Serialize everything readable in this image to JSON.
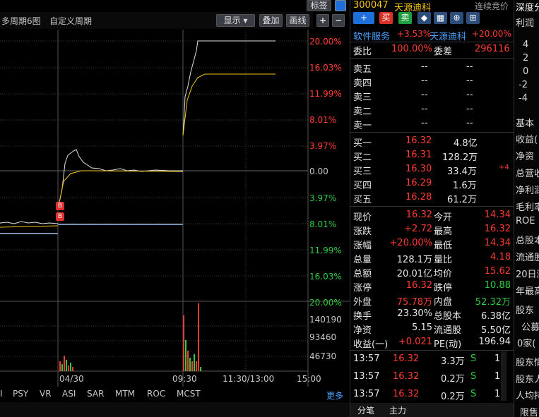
{
  "toolbar": {
    "tabs": [
      "多周期6图",
      "自定义周期"
    ],
    "display_label": "显示",
    "overlay_label": "叠加",
    "draw_label": "画线",
    "tag_label": "标签",
    "zoom_in": "+",
    "zoom_out": "−"
  },
  "chart": {
    "right_axis_top": [
      "20.00%",
      "16.03%",
      "11.99%",
      "8.01%",
      "3.97%",
      "0.00",
      "3.97%",
      "8.01%",
      "11.99%",
      "16.03%"
    ],
    "right_axis_top_colors": [
      "#ff3b30",
      "#ff3b30",
      "#ff3b30",
      "#ff3b30",
      "#ff3b30",
      "#c8c8c8",
      "#2ecc40",
      "#2ecc40",
      "#2ecc40",
      "#2ecc40"
    ],
    "volume_axis": [
      "20.00%",
      "140190",
      "93460",
      "46730"
    ],
    "volume_axis_colors": [
      "#2ecc40",
      "#c8c8c8",
      "#c8c8c8",
      "#c8c8c8"
    ],
    "x_labels": [
      "04/30",
      "09:30",
      "11:30/13:00",
      "15:00"
    ],
    "buy_markers": [
      "B",
      "B"
    ]
  },
  "indicators": {
    "items": [
      "I",
      "PSY",
      "VR",
      "ASI",
      "SAR",
      "MTM",
      "ROC",
      "MCST"
    ],
    "more_label": "更多"
  },
  "quote": {
    "code": "300047",
    "name": "天源迪科",
    "status": "连续竞价",
    "buy_btn": "买",
    "sell_btn": "卖",
    "add_btn": "+",
    "sector": "软件服务",
    "sector_change": "+3.53%",
    "stock_short": "天源迪科",
    "stock_change": "+20.00%",
    "ratio_label": "委比",
    "ratio_value": "100.00%",
    "diff_label": "委差",
    "diff_value": "296116",
    "asks": [
      {
        "label": "卖五",
        "price": "--",
        "vol": "--"
      },
      {
        "label": "卖四",
        "price": "--",
        "vol": "--"
      },
      {
        "label": "卖三",
        "price": "--",
        "vol": "--"
      },
      {
        "label": "卖二",
        "price": "--",
        "vol": "--"
      },
      {
        "label": "卖一",
        "price": "--",
        "vol": "--"
      }
    ],
    "bids": [
      {
        "label": "买一",
        "price": "16.32",
        "vol": "4.8亿",
        "extra": ""
      },
      {
        "label": "买二",
        "price": "16.31",
        "vol": "128.2万",
        "extra": ""
      },
      {
        "label": "买三",
        "price": "16.30",
        "vol": "33.4万",
        "extra": "+4"
      },
      {
        "label": "买四",
        "price": "16.29",
        "vol": "1.6万",
        "extra": ""
      },
      {
        "label": "买五",
        "price": "16.28",
        "vol": "61.2万",
        "extra": ""
      }
    ],
    "stats": [
      {
        "l1": "现价",
        "v1": "16.32",
        "c1": "#ff3b30",
        "l2": "今开",
        "v2": "14.34",
        "c2": "#ff3b30"
      },
      {
        "l1": "涨跌",
        "v1": "+2.72",
        "c1": "#ff3b30",
        "l2": "最高",
        "v2": "16.32",
        "c2": "#ff3b30"
      },
      {
        "l1": "涨幅",
        "v1": "+20.00%",
        "c1": "#ff3b30",
        "l2": "最低",
        "v2": "14.34",
        "c2": "#ff3b30"
      },
      {
        "l1": "总量",
        "v1": "128.1万",
        "c1": "#e6e6e6",
        "l2": "量比",
        "v2": "4.18",
        "c2": "#ff3b30"
      },
      {
        "l1": "总额",
        "v1": "20.01亿",
        "c1": "#e6e6e6",
        "l2": "均价",
        "v2": "15.62",
        "c2": "#ff3b30"
      },
      {
        "l1": "涨停",
        "v1": "16.32",
        "c1": "#ff3b30",
        "l2": "跌停",
        "v2": "10.88",
        "c2": "#2ecc40"
      },
      {
        "l1": "外盘",
        "v1": "75.78万",
        "c1": "#ff3b30",
        "l2": "内盘",
        "v2": "52.32万",
        "c2": "#2ecc40"
      },
      {
        "l1": "换手",
        "v1": "23.30%",
        "c1": "#e6e6e6",
        "l2": "总股本",
        "v2": "6.38亿",
        "c2": "#e6e6e6"
      },
      {
        "l1": "净资",
        "v1": "5.15",
        "c1": "#e6e6e6",
        "l2": "流通股",
        "v2": "5.50亿",
        "c2": "#e6e6e6"
      },
      {
        "l1": "收益(一)",
        "v1": "+0.021",
        "c1": "#ff3b30",
        "l2": "PE(动)",
        "v2": "196.94",
        "c2": "#e6e6e6"
      }
    ],
    "ticks": [
      {
        "time": "13:57",
        "price": "16.32",
        "vol": "3.3万",
        "side": "S",
        "n": "1"
      },
      {
        "time": "13:57",
        "price": "16.32",
        "vol": "0.2万",
        "side": "S",
        "n": "1"
      },
      {
        "time": "13:57",
        "price": "16.32",
        "vol": "0.2万",
        "side": "S",
        "n": "1"
      }
    ],
    "tab_ticks": "分笔",
    "tab_main": "主力"
  },
  "f10": {
    "title": "深度分",
    "profit": "利润",
    "axis": [
      "4",
      "2",
      "0",
      "-2",
      "-4"
    ],
    "basic": "基本",
    "items": [
      "收益(",
      "净资",
      "总营收",
      "净利润",
      "毛利率",
      "ROE",
      "总股本",
      "流通股",
      "20日涨",
      "年最高"
    ],
    "shareholders": "股东",
    "announce": "公募",
    "zero_home": "0家(",
    "holders1": "股东情",
    "holders2": "股东人",
    "per_cap": "人均持",
    "limit": "限售"
  }
}
